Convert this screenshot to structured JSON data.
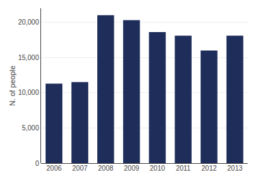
{
  "chart_data": {
    "type": "bar",
    "categories": [
      "2006",
      "2007",
      "2008",
      "2009",
      "2010",
      "2011",
      "2012",
      "2013"
    ],
    "values": [
      11300,
      11500,
      21000,
      20300,
      18600,
      18100,
      16000,
      18100
    ],
    "color": "#1e2d5a",
    "ylabel": "N. of people",
    "ylim": [
      0,
      22000
    ],
    "yticks": [
      0,
      {
        "value": 5000,
        "label": "5,000"
      },
      {
        "value": 10000,
        "label": "10,000"
      },
      {
        "value": 15000,
        "label": "15,000"
      },
      {
        "value": 20000,
        "label": "20,000"
      }
    ],
    "grid": true
  }
}
